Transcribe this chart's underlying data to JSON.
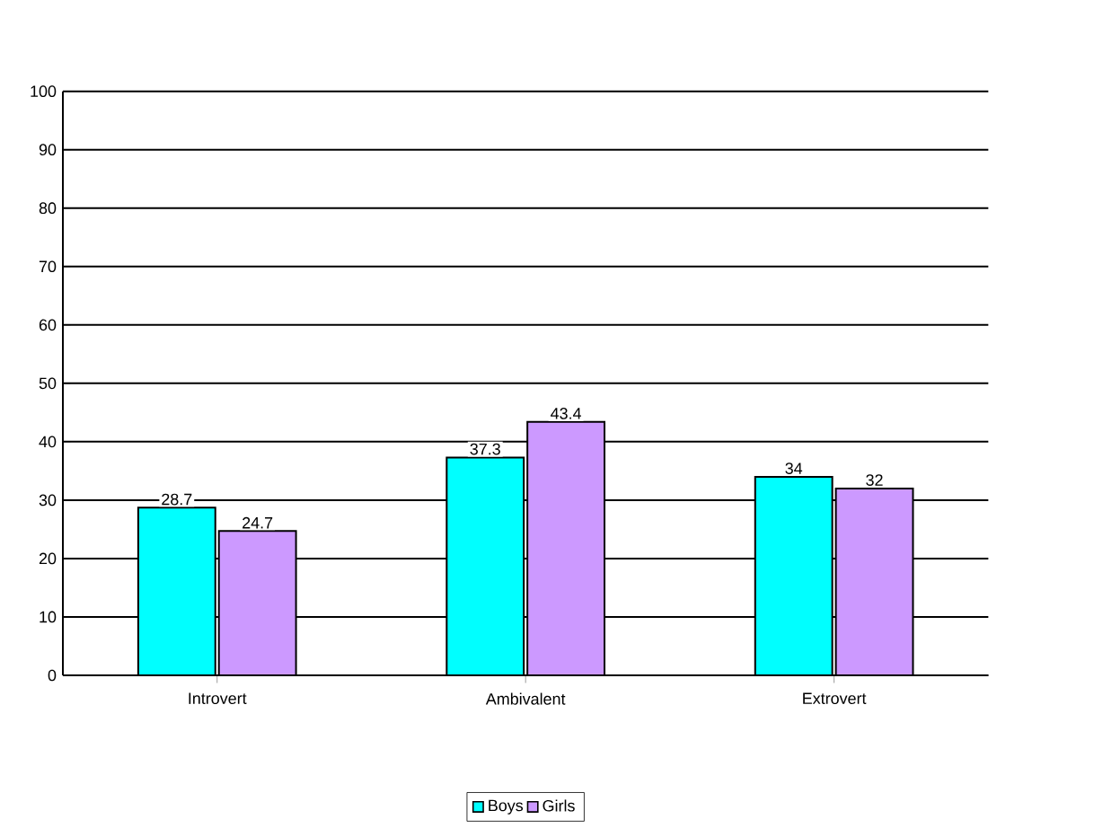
{
  "chart_data": {
    "type": "bar",
    "categories": [
      "Introvert",
      "Ambivalent",
      "Extrovert"
    ],
    "series": [
      {
        "name": "Boys",
        "color": "#00ffff",
        "values": [
          28.7,
          37.3,
          34
        ]
      },
      {
        "name": "Girls",
        "color": "#cc99ff",
        "values": [
          24.7,
          43.4,
          32
        ]
      }
    ],
    "ylim": [
      0,
      100
    ],
    "yticks": [
      0,
      10,
      20,
      30,
      40,
      50,
      60,
      70,
      80,
      90,
      100
    ],
    "grid": "y",
    "legend": "bottom",
    "data_labels": true
  }
}
